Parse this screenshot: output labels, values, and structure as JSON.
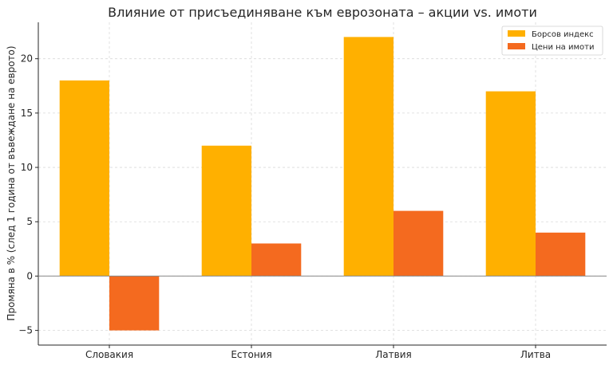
{
  "chart_data": {
    "type": "bar",
    "title": "Влияние от присъединяване към еврозоната – акции vs. имоти",
    "xlabel": "",
    "ylabel": "Промяна в % (след 1 година от въвеждане на еврото)",
    "categories": [
      "Словакия",
      "Естония",
      "Латвия",
      "Литва"
    ],
    "series": [
      {
        "name": "Борсов индекс",
        "values": [
          18,
          12,
          22,
          17
        ],
        "color": "#FFB000"
      },
      {
        "name": "Цени на имоти",
        "values": [
          -5,
          3,
          6,
          4
        ],
        "color": "#F46A1F"
      }
    ],
    "ylim": [
      -6.35,
      23.35
    ],
    "yticks": [
      -5,
      0,
      5,
      10,
      15,
      20
    ],
    "ytick_labels": [
      "−5",
      "0",
      "5",
      "10",
      "15",
      "20"
    ],
    "grid": true,
    "legend_position": "top-right"
  }
}
